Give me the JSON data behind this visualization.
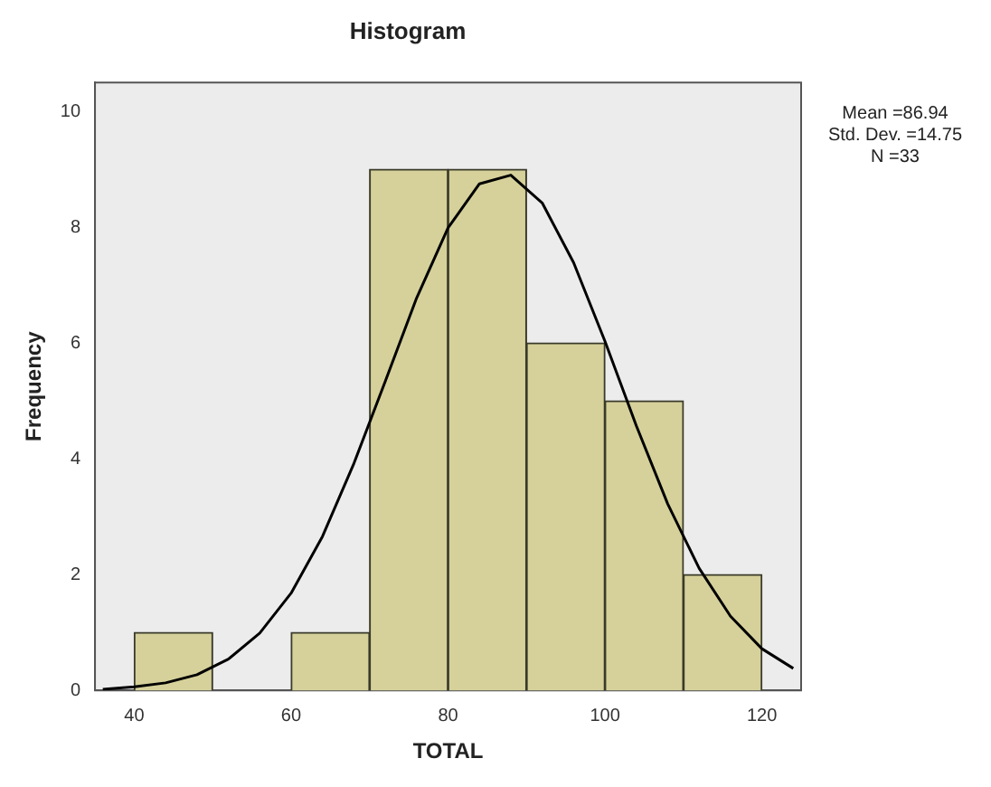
{
  "chart_data": {
    "type": "histogram",
    "title": "Histogram",
    "xlabel": "TOTAL",
    "ylabel": "Frequency",
    "bins": [
      40,
      50,
      60,
      70,
      80,
      90,
      100,
      110,
      120
    ],
    "values": [
      1,
      0,
      1,
      9,
      9,
      6,
      5,
      2
    ],
    "color": "#d6d19a",
    "series": [
      {
        "type": "line",
        "color": "#000000",
        "x": [
          36,
          40,
          44,
          48,
          52,
          56,
          60,
          64,
          68,
          72,
          76,
          80,
          84,
          88,
          92,
          96,
          100,
          104,
          108,
          112,
          116,
          120,
          124
        ],
        "values": [
          0.02,
          0.06,
          0.13,
          0.27,
          0.54,
          0.99,
          1.68,
          2.66,
          3.92,
          5.34,
          6.78,
          7.99,
          8.75,
          8.9,
          8.42,
          7.39,
          6.03,
          4.57,
          3.22,
          2.11,
          1.28,
          0.72,
          0.38
        ]
      }
    ],
    "xlim": [
      35,
      125
    ],
    "xticks": [
      40,
      60,
      80,
      100,
      120
    ],
    "ylim": [
      0,
      10.5
    ],
    "yticks": [
      0,
      2,
      4,
      6,
      8,
      10
    ],
    "grid": false,
    "legend": false,
    "annotations": [
      "Mean =86.94",
      "Std. Dev. =14.75",
      "N =33"
    ]
  }
}
